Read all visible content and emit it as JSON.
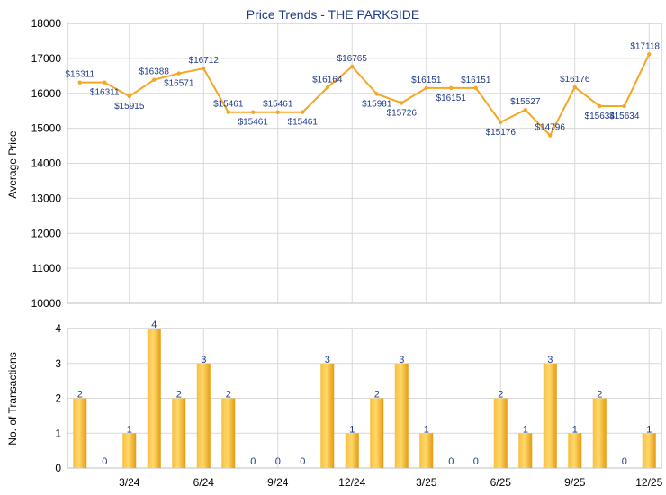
{
  "chart_data": [
    {
      "type": "line",
      "title": "Price Trends - THE PARKSIDE",
      "ylabel": "Average Price",
      "ylim": [
        10000,
        18000
      ],
      "yticks": [
        10000,
        11000,
        12000,
        13000,
        14000,
        15000,
        16000,
        17000,
        18000
      ],
      "x": [
        "Jan 24",
        "Feb 24",
        "Mar 24",
        "Apr 24",
        "May 24",
        "Jun 24",
        "Jul 24",
        "Aug 24",
        "Sep 24",
        "Oct 24",
        "Nov 24",
        "Dec 24",
        "Jan 25",
        "Feb 25",
        "Mar 25",
        "Apr 25",
        "May 25",
        "Jun 25",
        "Jul 25",
        "Aug 25",
        "Sep 25",
        "Oct 25",
        "Nov 25",
        "Dec 25"
      ],
      "xtick_labels": [
        "3/24",
        "6/24",
        "9/24",
        "12/24",
        "3/25",
        "6/25",
        "9/25",
        "12/25"
      ],
      "xtick_indices": [
        2,
        5,
        8,
        11,
        14,
        17,
        20,
        23
      ],
      "values": [
        16311,
        16311,
        15915,
        16388,
        16571,
        16712,
        15461,
        15461,
        15461,
        15461,
        16164,
        16765,
        15981,
        15726,
        16151,
        16151,
        16151,
        15176,
        15527,
        14796,
        16176,
        15634,
        15634,
        17118
      ],
      "labels": [
        "$16311",
        "$16311",
        "$15915",
        "$16388",
        "$16571",
        "$16712",
        "$15461",
        "$15461",
        "$15461",
        "$15461",
        "$16164",
        "$16765",
        "$15981",
        "$15726",
        "$16151",
        "$16151",
        "$16151",
        "$15176",
        "$15527",
        "$14796",
        "$16176",
        "$15634",
        "$15634",
        "$17118"
      ],
      "line_color": "#f5a623",
      "grid": true
    },
    {
      "type": "bar",
      "ylabel": "No. of Transactions",
      "ylim": [
        0,
        4
      ],
      "yticks": [
        0,
        1,
        2,
        3,
        4
      ],
      "values": [
        2,
        0,
        1,
        4,
        2,
        3,
        2,
        0,
        0,
        0,
        3,
        1,
        2,
        3,
        1,
        0,
        0,
        2,
        1,
        3,
        1,
        2,
        0,
        1
      ],
      "bar_color": "#f0a820",
      "grid": true
    }
  ]
}
